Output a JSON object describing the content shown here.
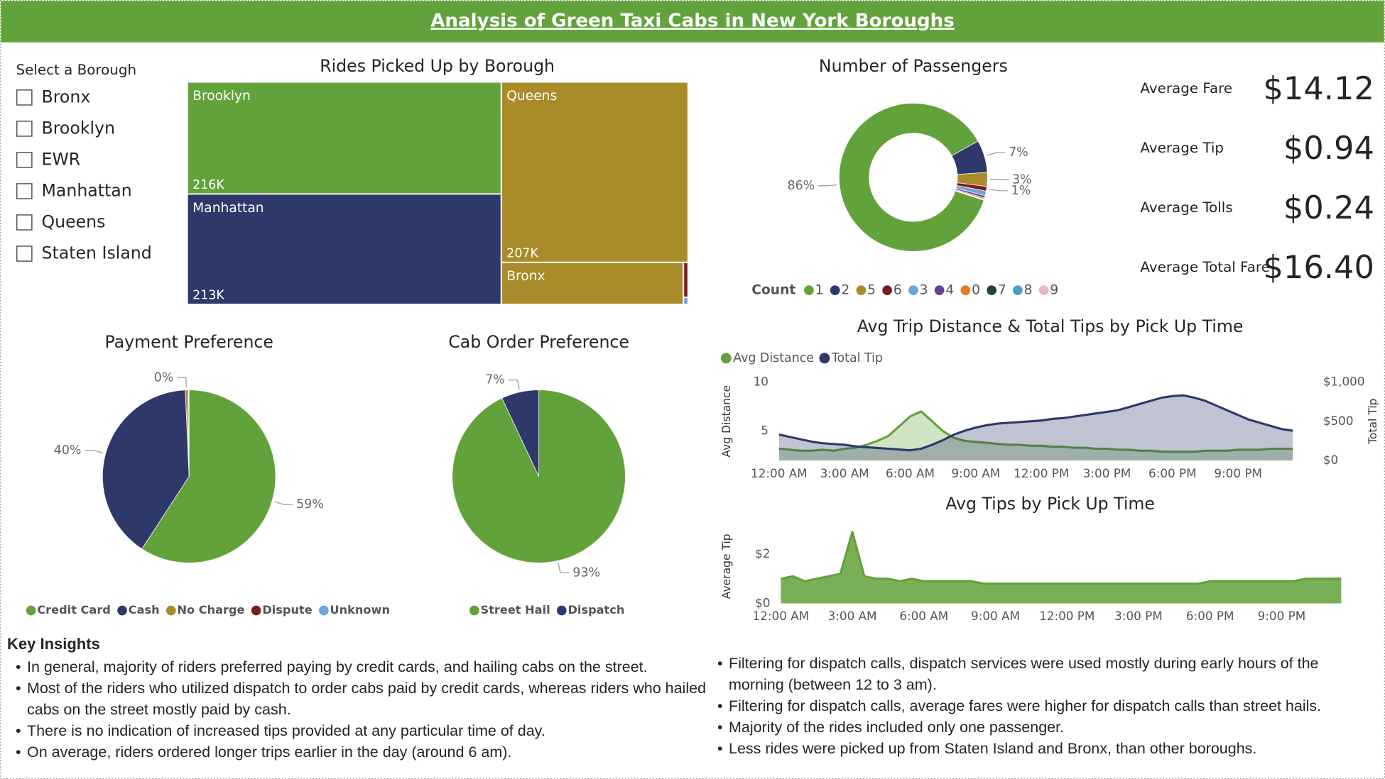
{
  "header": {
    "title": "Analysis of Green Taxi Cabs in New York Boroughs"
  },
  "slicer": {
    "title": "Select a Borough",
    "options": [
      "Bronx",
      "Brooklyn",
      "EWR",
      "Manhattan",
      "Queens",
      "Staten Island"
    ]
  },
  "kpis": [
    {
      "label": "Average Fare",
      "value": "$14.12"
    },
    {
      "label": "Average Tip",
      "value": "$0.94"
    },
    {
      "label": "Average Tolls",
      "value": "$0.24"
    },
    {
      "label": "Average Total Fare",
      "value": "$16.40"
    }
  ],
  "chart_data": [
    {
      "type": "treemap",
      "title": "Rides Picked Up by Borough",
      "categories": [
        "Brooklyn",
        "Manhattan",
        "Queens",
        "Bronx",
        null,
        null
      ],
      "values": [
        216000,
        213000,
        207000,
        47000,
        1000,
        200
      ],
      "value_labels": [
        "216K",
        "213K",
        "207K",
        null,
        null,
        null
      ],
      "colors": [
        "#62a23a",
        "#2e386b",
        "#a98c29",
        "#a98c29",
        "#7b1c23",
        "#6fa3db"
      ]
    },
    {
      "type": "donut",
      "title": "Number of Passengers",
      "legend_title": "Count",
      "categories": [
        "1",
        "2",
        "5",
        "6",
        "3",
        "4",
        "0",
        "7",
        "8",
        "9"
      ],
      "values": [
        86,
        7,
        3,
        1,
        1,
        0.5,
        0.3,
        0.1,
        0.05,
        0.05
      ],
      "value_labels": [
        "86%",
        "7%",
        "3%",
        "1%",
        null,
        null,
        null,
        null,
        null,
        null
      ],
      "colors": [
        "#62a23a",
        "#2e386b",
        "#a98c29",
        "#7b1c23",
        "#6fa3db",
        "#6a3d9a",
        "#e07b24",
        "#1d4a2a",
        "#4f9cc0",
        "#e8b8bc"
      ]
    },
    {
      "type": "pie",
      "title": "Payment Preference",
      "categories": [
        "Credit Card",
        "Cash",
        "No Charge",
        "Dispute",
        "Unknown"
      ],
      "values": [
        59,
        40,
        0.4,
        0.2,
        0.1
      ],
      "value_labels": [
        "59%",
        "40%",
        "0%",
        null,
        null
      ],
      "colors": [
        "#62a23a",
        "#2e386b",
        "#a98c29",
        "#7b1c23",
        "#6fa3db"
      ]
    },
    {
      "type": "pie",
      "title": "Cab Order Preference",
      "categories": [
        "Street Hail",
        "Dispatch"
      ],
      "values": [
        93,
        7
      ],
      "value_labels": [
        "93%",
        "7%"
      ],
      "colors": [
        "#62a23a",
        "#2e386b"
      ]
    },
    {
      "type": "area",
      "title": "Avg Trip Distance & Total Tips by Pick Up Time",
      "ylabel": "Avg Distance",
      "y2label": "Total Tip",
      "x": [
        0,
        0.5,
        1,
        1.5,
        2,
        2.5,
        3,
        3.5,
        4,
        4.5,
        5,
        5.5,
        6,
        6.5,
        7,
        7.5,
        8,
        8.5,
        9,
        9.5,
        10,
        10.5,
        11,
        11.5,
        12,
        12.5,
        13,
        13.5,
        14,
        14.5,
        15,
        15.5,
        16,
        16.5,
        17,
        17.5,
        18,
        18.5,
        19,
        19.5,
        20,
        20.5,
        21,
        21.5,
        22,
        22.5,
        23,
        23.5
      ],
      "xlim": [
        0,
        24
      ],
      "xticks": [
        {
          "value": 0,
          "label": "12:00 AM"
        },
        {
          "value": 3,
          "label": "3:00 AM"
        },
        {
          "value": 6,
          "label": "6:00 AM"
        },
        {
          "value": 9,
          "label": "9:00 AM"
        },
        {
          "value": 12,
          "label": "12:00 PM"
        },
        {
          "value": 15,
          "label": "3:00 PM"
        },
        {
          "value": 18,
          "label": "6:00 PM"
        },
        {
          "value": 21,
          "label": "9:00 PM"
        }
      ],
      "ylim": [
        2,
        10
      ],
      "yticks": [
        5,
        10
      ],
      "y2lim": [
        0,
        1000
      ],
      "y2ticks": [
        {
          "value": 0,
          "label": "$0"
        },
        {
          "value": 500,
          "label": "$500"
        },
        {
          "value": 1000,
          "label": "$1,000"
        }
      ],
      "series": [
        {
          "name": "Avg Distance",
          "color": "#62a23a",
          "values": [
            3.2,
            3.1,
            3.0,
            3.0,
            3.1,
            3.0,
            3.2,
            3.3,
            3.6,
            4.0,
            4.5,
            5.5,
            6.5,
            7.0,
            6.0,
            5.0,
            4.3,
            4.0,
            3.9,
            3.8,
            3.7,
            3.6,
            3.6,
            3.5,
            3.5,
            3.4,
            3.4,
            3.3,
            3.3,
            3.2,
            3.2,
            3.1,
            3.1,
            3.0,
            3.0,
            2.9,
            2.9,
            2.9,
            2.9,
            3.0,
            3.0,
            3.0,
            3.1,
            3.1,
            3.1,
            3.2,
            3.2,
            3.2
          ]
        },
        {
          "name": "Total Tip",
          "color": "#2e386b",
          "axis": "y2",
          "values": [
            330,
            300,
            270,
            240,
            220,
            210,
            200,
            180,
            170,
            160,
            150,
            140,
            130,
            150,
            200,
            260,
            330,
            380,
            420,
            450,
            470,
            480,
            490,
            500,
            510,
            530,
            540,
            560,
            580,
            600,
            620,
            640,
            680,
            720,
            760,
            800,
            820,
            830,
            800,
            760,
            700,
            640,
            580,
            520,
            480,
            440,
            400,
            380
          ]
        }
      ]
    },
    {
      "type": "area",
      "title": "Avg Tips by Pick Up Time",
      "ylabel": "Average Tip",
      "x": [
        0,
        0.5,
        1,
        1.5,
        2,
        2.5,
        3,
        3.5,
        4,
        4.5,
        5,
        5.5,
        6,
        6.5,
        7,
        7.5,
        8,
        8.5,
        9,
        9.5,
        10,
        10.5,
        11,
        11.5,
        12,
        12.5,
        13,
        13.5,
        14,
        14.5,
        15,
        15.5,
        16,
        16.5,
        17,
        17.5,
        18,
        18.5,
        19,
        19.5,
        20,
        20.5,
        21,
        21.5,
        22,
        22.5,
        23,
        23.5
      ],
      "xlim": [
        0,
        24
      ],
      "xticks": [
        {
          "value": 0,
          "label": "12:00 AM"
        },
        {
          "value": 3,
          "label": "3:00 AM"
        },
        {
          "value": 6,
          "label": "6:00 AM"
        },
        {
          "value": 9,
          "label": "9:00 AM"
        },
        {
          "value": 12,
          "label": "12:00 PM"
        },
        {
          "value": 15,
          "label": "3:00 PM"
        },
        {
          "value": 18,
          "label": "6:00 PM"
        },
        {
          "value": 21,
          "label": "9:00 PM"
        }
      ],
      "ylim": [
        0,
        3
      ],
      "yticks": [
        {
          "value": 0,
          "label": "$0"
        },
        {
          "value": 2,
          "label": "$2"
        }
      ],
      "series": [
        {
          "name": "Average Tip",
          "color": "#62a23a",
          "values": [
            1.0,
            1.1,
            0.9,
            1.0,
            1.1,
            1.2,
            2.9,
            1.1,
            1.0,
            1.0,
            0.9,
            1.0,
            0.9,
            0.9,
            0.9,
            0.9,
            0.9,
            0.8,
            0.8,
            0.8,
            0.8,
            0.8,
            0.8,
            0.8,
            0.8,
            0.8,
            0.8,
            0.8,
            0.8,
            0.8,
            0.8,
            0.8,
            0.8,
            0.8,
            0.8,
            0.8,
            0.9,
            0.9,
            0.9,
            0.9,
            0.9,
            0.9,
            0.9,
            0.9,
            1.0,
            1.0,
            1.0,
            1.0
          ]
        }
      ]
    }
  ],
  "insights": {
    "title": "Key Insights",
    "left": [
      "In general, majority of riders preferred paying by credit cards, and hailing cabs on the street.",
      "Most of the riders who utilized dispatch to order cabs paid by credit cards, whereas riders who hailed cabs on the street mostly paid by cash.",
      "There is no indication of increased tips provided at any particular time of day.",
      "On average, riders ordered longer trips earlier in the day (around 6 am)."
    ],
    "right": [
      "Filtering for dispatch calls, dispatch services were used mostly during early hours of the morning (between 12 to 3 am).",
      "Filtering for dispatch calls, average fares were higher for dispatch calls than street hails.",
      "Majority of the rides included only one passenger.",
      "Less rides were picked up from Staten Island and Bronx, than other boroughs."
    ]
  }
}
